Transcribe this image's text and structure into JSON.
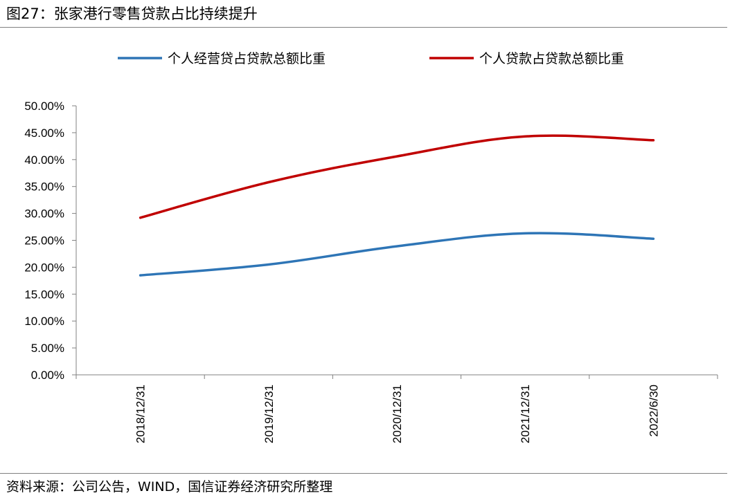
{
  "figure": {
    "title": "图27：张家港行零售贷款占比持续提升",
    "source": "资料来源：公司公告，WIND，国信证券经济研究所整理"
  },
  "chart_data": {
    "type": "line",
    "categories": [
      "2018/12/31",
      "2019/12/31",
      "2020/12/31",
      "2021/12/31",
      "2022/6/30"
    ],
    "series": [
      {
        "name": "个人经营贷占贷款总额比重",
        "color": "#2e75b6",
        "values": [
          18.5,
          20.5,
          23.9,
          26.3,
          25.3
        ]
      },
      {
        "name": "个人贷款占贷款总额比重",
        "color": "#c00000",
        "values": [
          29.2,
          35.8,
          40.6,
          44.3,
          43.6
        ]
      }
    ],
    "y_ticks": [
      "0.00%",
      "5.00%",
      "10.00%",
      "15.00%",
      "20.00%",
      "25.00%",
      "30.00%",
      "35.00%",
      "40.00%",
      "45.00%",
      "50.00%"
    ],
    "ylim": [
      0,
      50
    ],
    "legend_position": "top",
    "grid": false
  }
}
